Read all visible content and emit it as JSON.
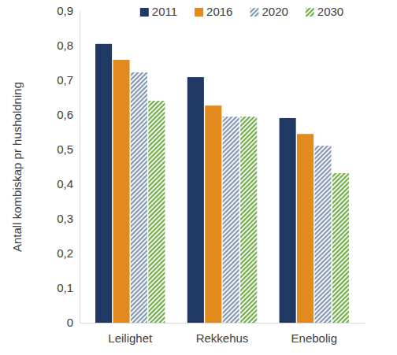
{
  "chart_data": {
    "type": "bar",
    "y_label": "Antall kombiskap pr husholdning",
    "categories": [
      "Leilighet",
      "Rekkehus",
      "Enebolig"
    ],
    "series": [
      {
        "name": "2011",
        "color": "#203864",
        "line_style": "solid",
        "values": [
          0.805,
          0.709,
          0.591
        ]
      },
      {
        "name": "2016",
        "color": "#e38a1f",
        "line_style": "solid",
        "values": [
          0.759,
          0.627,
          0.545
        ]
      },
      {
        "name": "2020",
        "color": "#8497b0",
        "line_style": "hatched",
        "values": [
          0.723,
          0.595,
          0.511
        ]
      },
      {
        "name": "2030",
        "color": "#70ad47",
        "line_style": "hatched",
        "values": [
          0.641,
          0.595,
          0.432
        ]
      }
    ],
    "ylim": [
      0,
      0.9
    ],
    "yticks": [
      0,
      {
        "value": 0.1,
        "label": "0,1"
      },
      {
        "value": 0.2,
        "label": "0,2"
      },
      {
        "value": 0.3,
        "label": "0,3"
      },
      {
        "value": 0.4,
        "label": "0,4"
      },
      {
        "value": 0.5,
        "label": "0,5"
      },
      {
        "value": 0.6,
        "label": "0,6"
      },
      {
        "value": 0.7,
        "label": "0,7"
      },
      {
        "value": 0.8,
        "label": "0,8"
      },
      {
        "value": 0.9,
        "label": "0,9"
      }
    ],
    "grid": false,
    "legend": "top"
  }
}
